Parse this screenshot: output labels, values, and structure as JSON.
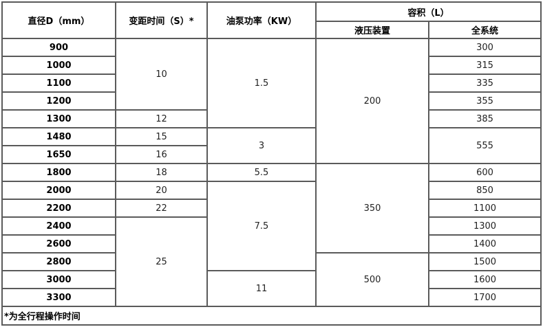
{
  "headers": {
    "diameter": "直径D（mm）",
    "pitch_time": "变距时间（S）*",
    "pump_power": "油泵功率（KW）",
    "volume": "容积（L）",
    "hydraulic": "液压装置",
    "system": "全系统"
  },
  "diameters": [
    "900",
    "1000",
    "1100",
    "1200",
    "1300",
    "1480",
    "1650",
    "1800",
    "2000",
    "2200",
    "2400",
    "2600",
    "2800",
    "3000",
    "3300"
  ],
  "pitch_time": [
    {
      "value": "10",
      "rows": 4
    },
    {
      "value": "12",
      "rows": 1
    },
    {
      "value": "15",
      "rows": 1
    },
    {
      "value": "16",
      "rows": 1
    },
    {
      "value": "18",
      "rows": 1
    },
    {
      "value": "20",
      "rows": 1
    },
    {
      "value": "22",
      "rows": 1
    },
    {
      "value": "25",
      "rows": 5
    }
  ],
  "pump_power": [
    {
      "value": "1.5",
      "rows": 5
    },
    {
      "value": "3",
      "rows": 2
    },
    {
      "value": "5.5",
      "rows": 1
    },
    {
      "value": "7.5",
      "rows": 5
    },
    {
      "value": "11",
      "rows": 2
    }
  ],
  "hydraulic": [
    {
      "value": "200",
      "rows": 7
    },
    {
      "value": "350",
      "rows": 5
    },
    {
      "value": "500",
      "rows": 3
    }
  ],
  "system": [
    {
      "value": "300",
      "rows": 1
    },
    {
      "value": "315",
      "rows": 1
    },
    {
      "value": "335",
      "rows": 1
    },
    {
      "value": "355",
      "rows": 1
    },
    {
      "value": "385",
      "rows": 1
    },
    {
      "value": "555",
      "rows": 2
    },
    {
      "value": "600",
      "rows": 1
    },
    {
      "value": "850",
      "rows": 1
    },
    {
      "value": "1100",
      "rows": 1
    },
    {
      "value": "1300",
      "rows": 1
    },
    {
      "value": "1400",
      "rows": 1
    },
    {
      "value": "1500",
      "rows": 1
    },
    {
      "value": "1600",
      "rows": 1
    },
    {
      "value": "1700",
      "rows": 1
    }
  ],
  "footnote": "*为全行程操作时间"
}
